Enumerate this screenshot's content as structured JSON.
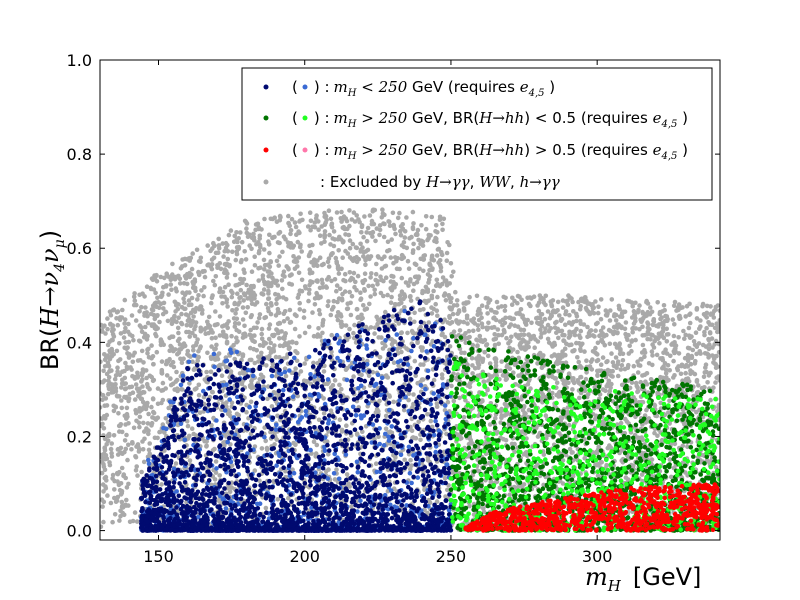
{
  "chart_data": {
    "type": "scatter",
    "xlim": [
      130,
      342
    ],
    "ylim": [
      -0.02,
      1.0
    ],
    "x_ticks": [
      150,
      200,
      250,
      300
    ],
    "y_ticks": [
      0.0,
      0.2,
      0.4,
      0.6,
      0.8,
      1.0
    ],
    "x_tick_labels": [
      "150",
      "200",
      "250",
      "300"
    ],
    "y_tick_labels": [
      "0.0",
      "0.2",
      "0.4",
      "0.6",
      "0.8",
      "1.0"
    ],
    "xlabel": {
      "symbol": "m",
      "sub": "H",
      "unit": "[GeV]"
    },
    "ylabel": {
      "prefix": "BR(",
      "expr": "H→ν",
      "sub1": "4",
      "mid": "ν",
      "sub2": "μ",
      "suffix": ")"
    },
    "legend_position": "top-right",
    "legend": [
      {
        "open": "(",
        "close": ") :",
        "math": "m",
        "math_sub": "H",
        "rel": " < 250",
        "rest": " GeV (requires ",
        "req_math": "e",
        "req_sub": "4,5",
        "tail": " )",
        "color_primary": "#000a70",
        "color_secondary": "#3a6ad4"
      },
      {
        "open": "(",
        "close": ") :",
        "math": "m",
        "math_sub": "H",
        "rel": " > 250",
        "rest": " GeV, BR(",
        "br_math": "H→hh",
        "br_rel": ") < 0.5 (requires ",
        "req_math": "e",
        "req_sub": "4,5",
        "tail": " )",
        "color_primary": "#007400",
        "color_secondary": "#22ff22"
      },
      {
        "open": "(",
        "close": ") :",
        "math": "m",
        "math_sub": "H",
        "rel": " > 250",
        "rest": " GeV, BR(",
        "br_math": "H→hh",
        "br_rel": ") > 0.5 (requires ",
        "req_math": "e",
        "req_sub": "4,5",
        "tail": " )",
        "color_primary": "#ff0000",
        "color_secondary": "#ff77aa"
      },
      {
        "prefix": ": Excluded by ",
        "m1": "H→γγ",
        "sep1": ", ",
        "m2": "WW",
        "sep2": ", ",
        "m3": "h→γγ",
        "color_primary": "#a9a9a9"
      }
    ],
    "series": [
      {
        "group": "excluded",
        "color": "#a9a9a9",
        "x_range": [
          130,
          342
        ],
        "max_upper": [
          [
            130,
            0.45
          ],
          [
            150,
            0.55
          ],
          [
            180,
            0.66
          ],
          [
            220,
            0.69
          ],
          [
            248,
            0.67
          ],
          [
            252,
            0.5
          ],
          [
            290,
            0.5
          ],
          [
            342,
            0.48
          ]
        ]
      },
      {
        "group": "mH<250 (e4,5 light)",
        "color": "#3a6ad4",
        "x_range": [
          144,
          250
        ],
        "max_upper": [
          [
            144,
            0.12
          ],
          [
            160,
            0.38
          ],
          [
            200,
            0.4
          ],
          [
            240,
            0.48
          ],
          [
            250,
            0.45
          ]
        ]
      },
      {
        "group": "mH<250 (e4,5 dark)",
        "color": "#000a70",
        "x_range": [
          144,
          250
        ],
        "max_upper": [
          [
            144,
            0.1
          ],
          [
            160,
            0.35
          ],
          [
            200,
            0.38
          ],
          [
            240,
            0.5
          ],
          [
            250,
            0.44
          ]
        ]
      },
      {
        "group": "mH>250, BR(H→hh)<0.5 dark",
        "color": "#007400",
        "x_range": [
          250,
          342
        ],
        "max_upper": [
          [
            250,
            0.42
          ],
          [
            270,
            0.38
          ],
          [
            300,
            0.34
          ],
          [
            342,
            0.3
          ]
        ]
      },
      {
        "group": "mH>250, BR(H→hh)<0.5 light",
        "color": "#22ff22",
        "x_range": [
          250,
          342
        ],
        "max_upper": [
          [
            250,
            0.36
          ],
          [
            270,
            0.32
          ],
          [
            300,
            0.3
          ],
          [
            342,
            0.28
          ]
        ]
      },
      {
        "group": "mH>250, BR(H→hh)>0.5",
        "color": "#ff0000",
        "x_range": [
          255,
          342
        ],
        "max_upper": [
          [
            255,
            0.01
          ],
          [
            265,
            0.04
          ],
          [
            280,
            0.06
          ],
          [
            310,
            0.09
          ],
          [
            342,
            0.1
          ]
        ]
      }
    ]
  }
}
